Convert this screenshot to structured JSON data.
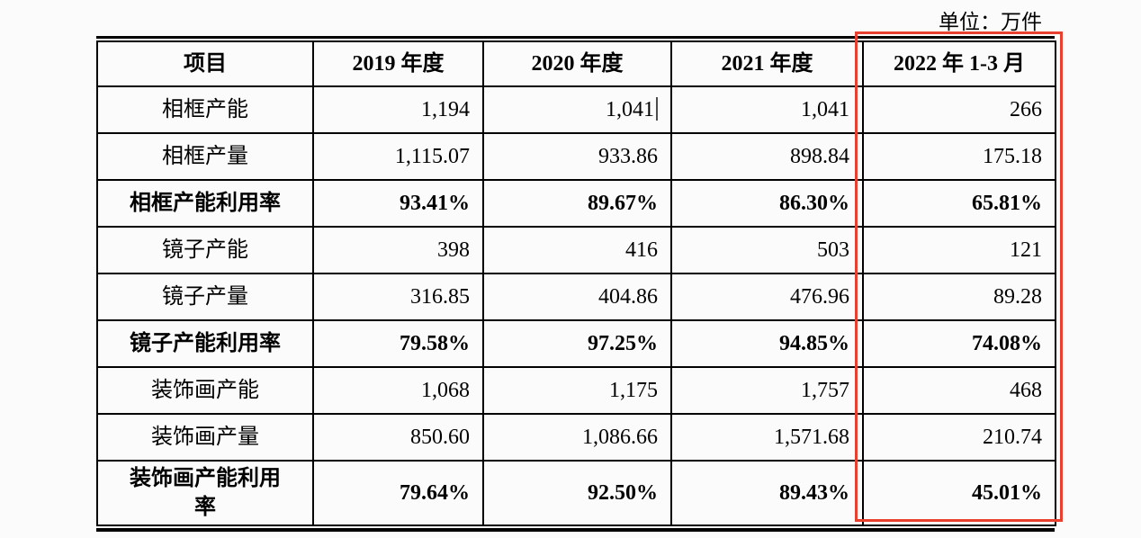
{
  "unit_label": "单位：万件",
  "table": {
    "columns": [
      "项目",
      "2019 年度",
      "2020 年度",
      "2021 年度",
      "2022 年 1-3 月"
    ],
    "rows": [
      {
        "label": "相框产能",
        "values": [
          "1,194",
          "1,041",
          "1,041",
          "266"
        ],
        "bold": false
      },
      {
        "label": "相框产量",
        "values": [
          "1,115.07",
          "933.86",
          "898.84",
          "175.18"
        ],
        "bold": false
      },
      {
        "label": "相框产能利用率",
        "values": [
          "93.41%",
          "89.67%",
          "86.30%",
          "65.81%"
        ],
        "bold": true
      },
      {
        "label": "镜子产能",
        "values": [
          "398",
          "416",
          "503",
          "121"
        ],
        "bold": false
      },
      {
        "label": "镜子产量",
        "values": [
          "316.85",
          "404.86",
          "476.96",
          "89.28"
        ],
        "bold": false
      },
      {
        "label": "镜子产能利用率",
        "values": [
          "79.58%",
          "97.25%",
          "94.85%",
          "74.08%"
        ],
        "bold": true
      },
      {
        "label": "装饰画产能",
        "values": [
          "1,068",
          "1,175",
          "1,757",
          "468"
        ],
        "bold": false
      },
      {
        "label": "装饰画产量",
        "values": [
          "850.60",
          "1,086.66",
          "1,571.68",
          "210.74"
        ],
        "bold": false
      },
      {
        "label": "装饰画产能利用率",
        "values": [
          "79.64%",
          "92.50%",
          "89.43%",
          "45.01%"
        ],
        "bold": true
      }
    ]
  },
  "annotations": {
    "highlight_box": {
      "color": "#e8402e",
      "highlighted_column": "2022 年 1-3 月"
    },
    "text_cursor": {
      "row_index": 0,
      "col_index": 1,
      "after_value": "1,041"
    }
  },
  "colors": {
    "table_border": "#000000",
    "background": "#fbfbfb",
    "text": "#000000",
    "caret": "#4d4d4d"
  }
}
